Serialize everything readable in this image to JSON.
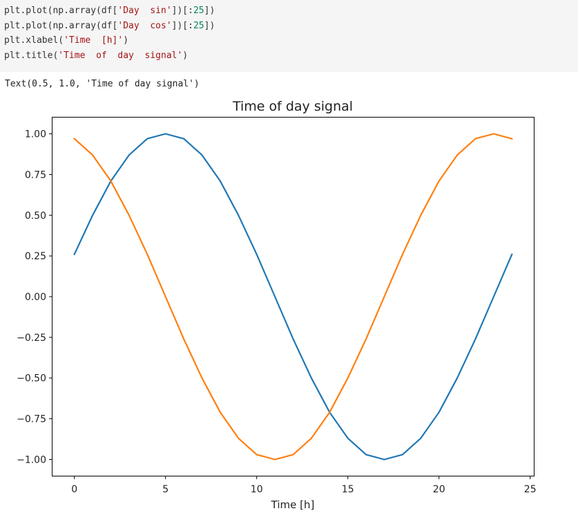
{
  "code": {
    "lines": [
      {
        "pre": "plt.plot(np.array(df[",
        "str": "'Day  sin'",
        "post1": "])[:",
        "num": "25",
        "post2": "])"
      },
      {
        "pre": "plt.plot(np.array(df[",
        "str": "'Day  cos'",
        "post1": "])[:",
        "num": "25",
        "post2": "])"
      },
      {
        "pre": "plt.xlabel(",
        "str": "'Time  [h]'",
        "post1": ")",
        "num": "",
        "post2": ""
      },
      {
        "pre": "plt.title(",
        "str": "'Time  of  day  signal'",
        "post1": ")",
        "num": "",
        "post2": ""
      }
    ]
  },
  "output": {
    "text": "Text(0.5, 1.0, 'Time of day signal')"
  },
  "chart_data": {
    "type": "line",
    "title": "Time of day signal",
    "xlabel": "Time [h]",
    "ylabel": "",
    "xlim": [
      -1.2,
      25.2
    ],
    "ylim": [
      -1.1,
      1.1
    ],
    "xticks": [
      0,
      5,
      10,
      15,
      20,
      25
    ],
    "yticks": [
      1.0,
      0.75,
      0.5,
      0.25,
      0.0,
      -0.25,
      -0.5,
      -0.75,
      -1.0
    ],
    "ytick_labels": [
      "1.00",
      "0.75",
      "0.50",
      "0.25",
      "0.00",
      "−0.25",
      "−0.50",
      "−0.75",
      "−1.00"
    ],
    "grid": false,
    "x": [
      0,
      1,
      2,
      3,
      4,
      5,
      6,
      7,
      8,
      9,
      10,
      11,
      12,
      13,
      14,
      15,
      16,
      17,
      18,
      19,
      20,
      21,
      22,
      23,
      24
    ],
    "series": [
      {
        "color": "#1f77b4",
        "values": [
          0.26,
          0.5,
          0.71,
          0.87,
          0.97,
          1.0,
          0.97,
          0.87,
          0.71,
          0.5,
          0.26,
          0.0,
          -0.26,
          -0.5,
          -0.71,
          -0.87,
          -0.97,
          -1.0,
          -0.97,
          -0.87,
          -0.71,
          -0.5,
          -0.26,
          0.0,
          0.26
        ]
      },
      {
        "color": "#ff7f0e",
        "values": [
          0.97,
          0.87,
          0.71,
          0.5,
          0.26,
          0.0,
          -0.26,
          -0.5,
          -0.71,
          -0.87,
          -0.97,
          -1.0,
          -0.97,
          -0.87,
          -0.71,
          -0.5,
          -0.26,
          0.0,
          0.26,
          0.5,
          0.71,
          0.87,
          0.97,
          1.0,
          0.97
        ]
      }
    ]
  }
}
